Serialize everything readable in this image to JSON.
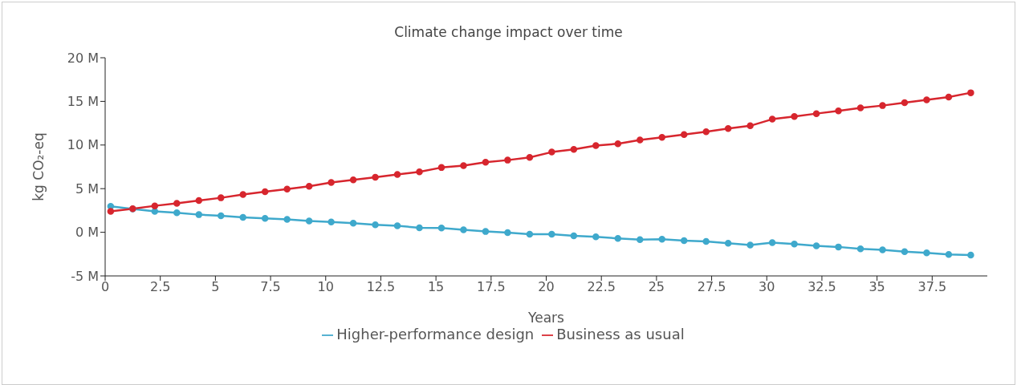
{
  "chart_data": {
    "type": "line",
    "title": "Climate change impact over time",
    "xlabel": "Years",
    "ylabel": "kg CO₂-eq",
    "x": [
      0.25,
      1.25,
      2.25,
      3.25,
      4.25,
      5.25,
      6.25,
      7.25,
      8.25,
      9.25,
      10.25,
      11.25,
      12.25,
      13.25,
      14.25,
      15.25,
      16.25,
      17.25,
      18.25,
      19.25,
      20.25,
      21.25,
      22.25,
      23.25,
      24.25,
      25.25,
      26.25,
      27.25,
      28.25,
      29.25,
      30.25,
      31.25,
      32.25,
      33.25,
      34.25,
      35.25,
      36.25,
      37.25,
      38.25,
      39.25
    ],
    "series": [
      {
        "name": "Higher-performance design",
        "color": "#3fa9cc",
        "values": [
          2.98,
          2.67,
          2.39,
          2.24,
          2.02,
          1.9,
          1.72,
          1.6,
          1.47,
          1.29,
          1.19,
          1.04,
          0.86,
          0.74,
          0.52,
          0.5,
          0.28,
          0.09,
          -0.03,
          -0.21,
          -0.21,
          -0.4,
          -0.51,
          -0.7,
          -0.85,
          -0.79,
          -0.95,
          -1.04,
          -1.25,
          -1.47,
          -1.19,
          -1.34,
          -1.56,
          -1.68,
          -1.89,
          -2.02,
          -2.21,
          -2.36,
          -2.54,
          -2.6
        ]
      },
      {
        "name": "Business as usual",
        "color": "#d7262e",
        "values": [
          2.39,
          2.7,
          3.03,
          3.31,
          3.65,
          3.95,
          4.32,
          4.66,
          4.96,
          5.27,
          5.7,
          6.01,
          6.31,
          6.62,
          6.93,
          7.42,
          7.63,
          8.03,
          8.27,
          8.58,
          9.19,
          9.5,
          9.93,
          10.15,
          10.57,
          10.88,
          11.19,
          11.53,
          11.89,
          12.2,
          12.96,
          13.27,
          13.6,
          13.91,
          14.25,
          14.52,
          14.86,
          15.17,
          15.5,
          15.99
        ]
      }
    ],
    "xlim": [
      0,
      40
    ],
    "xticks": [
      0,
      2.5,
      5,
      7.5,
      10,
      12.5,
      15,
      17.5,
      20,
      22.5,
      25,
      27.5,
      30,
      32.5,
      35,
      37.5
    ],
    "ylim": [
      -5,
      20
    ],
    "yticks": [
      {
        "value": -5,
        "label": "-5 M"
      },
      {
        "value": 0,
        "label": "0 M"
      },
      {
        "value": 5,
        "label": "5 M"
      },
      {
        "value": 10,
        "label": "10 M"
      },
      {
        "value": 15,
        "label": "15 M"
      },
      {
        "value": 20,
        "label": "20 M"
      }
    ],
    "legend": "bottom",
    "marker": "circle",
    "line_style": "solid",
    "grid": false
  }
}
